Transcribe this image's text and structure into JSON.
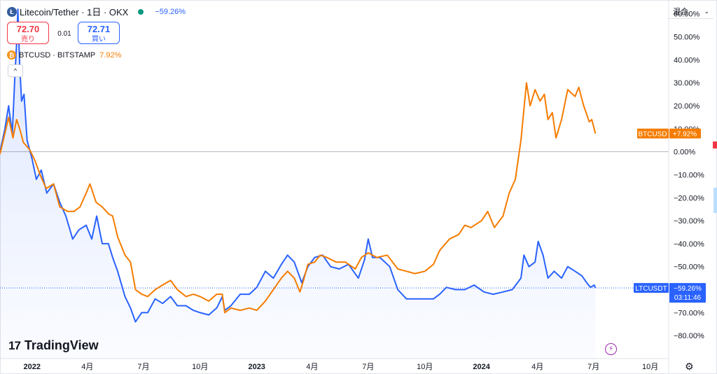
{
  "header": {
    "symbol_title": "Litecoin/Tether · 1日 · OKX",
    "change": "−59.26%",
    "sell_price": "72.70",
    "sell_label": "売り",
    "spread": "0.01",
    "buy_price": "72.71",
    "buy_label": "買い",
    "compare_symbol": "BTCUSD · BITSTAMP",
    "compare_change": "7.92%",
    "collapse_glyph": "^",
    "coin_glyph_main": "Ł",
    "coin_glyph_compare": "₿"
  },
  "toolbar": {
    "mode_label": "混合",
    "mode_chevron": "⌄"
  },
  "branding": {
    "mark": "17",
    "name": "TradingView"
  },
  "icons": {
    "flash": "⚡",
    "settings": "⚙"
  },
  "colors": {
    "ltc": "#2962ff",
    "btc": "#f57c00",
    "sell": "#f23645",
    "buy": "#2962ff",
    "zero_line": "#b2b5be",
    "last_line": "#2962ff"
  },
  "chart_data": {
    "type": "line",
    "title": "Litecoin/Tether · 1日 · OKX",
    "xlabel": "",
    "ylabel": "",
    "y_unit": "%",
    "ylim": [
      -90,
      66
    ],
    "y_ticks": [
      60,
      50,
      40,
      30,
      20,
      10,
      0,
      -10,
      -20,
      -30,
      -40,
      -50,
      -60,
      -70,
      -80
    ],
    "y_tick_labels": [
      "60.00%",
      "50.00%",
      "40.00%",
      "30.00%",
      "20.00%",
      "10.00%",
      "0.00%",
      "−10.00%",
      "−20.00%",
      "−30.00%",
      "−40.00%",
      "−50.00%",
      "−60.00%",
      "−70.00%",
      "−80.00%"
    ],
    "x_range": [
      "2021-11-10",
      "2024-10-31"
    ],
    "x_ticks": [
      "2022-01-01",
      "2022-04-01",
      "2022-07-01",
      "2022-10-01",
      "2023-01-01",
      "2023-04-01",
      "2023-07-01",
      "2023-10-01",
      "2024-01-01",
      "2024-04-01",
      "2024-07-01",
      "2024-10-01"
    ],
    "x_tick_labels": [
      "2022",
      "4月",
      "7月",
      "10月",
      "2023",
      "4月",
      "7月",
      "10月",
      "2024",
      "4月",
      "7月",
      "10月"
    ],
    "grid": false,
    "series": [
      {
        "name": "LTCUSDT",
        "color": "#2962ff",
        "filled": true,
        "last_label": "−59.26%",
        "countdown": "03:11:46",
        "points": [
          [
            "2021-11-10",
            0
          ],
          [
            "2021-11-18",
            10
          ],
          [
            "2021-11-24",
            20
          ],
          [
            "2021-11-30",
            8
          ],
          [
            "2021-12-04",
            32
          ],
          [
            "2021-12-07",
            47
          ],
          [
            "2021-12-09",
            62
          ],
          [
            "2021-12-12",
            38
          ],
          [
            "2021-12-15",
            22
          ],
          [
            "2021-12-19",
            25
          ],
          [
            "2021-12-24",
            5
          ],
          [
            "2022-01-01",
            -3
          ],
          [
            "2022-01-08",
            -12
          ],
          [
            "2022-01-16",
            -8
          ],
          [
            "2022-01-25",
            -18
          ],
          [
            "2022-02-05",
            -14
          ],
          [
            "2022-02-15",
            -22
          ],
          [
            "2022-02-25",
            -28
          ],
          [
            "2022-03-08",
            -38
          ],
          [
            "2022-03-18",
            -34
          ],
          [
            "2022-03-30",
            -32
          ],
          [
            "2022-04-08",
            -38
          ],
          [
            "2022-04-16",
            -28
          ],
          [
            "2022-04-25",
            -40
          ],
          [
            "2022-05-05",
            -40
          ],
          [
            "2022-05-12",
            -46
          ],
          [
            "2022-05-20",
            -52
          ],
          [
            "2022-06-01",
            -63
          ],
          [
            "2022-06-10",
            -68
          ],
          [
            "2022-06-18",
            -74
          ],
          [
            "2022-06-28",
            -70
          ],
          [
            "2022-07-08",
            -70
          ],
          [
            "2022-07-20",
            -64
          ],
          [
            "2022-08-01",
            -66
          ],
          [
            "2022-08-14",
            -63
          ],
          [
            "2022-08-25",
            -67
          ],
          [
            "2022-09-08",
            -67
          ],
          [
            "2022-09-20",
            -69
          ],
          [
            "2022-10-01",
            -70
          ],
          [
            "2022-10-15",
            -71
          ],
          [
            "2022-10-28",
            -68
          ],
          [
            "2022-11-06",
            -63
          ],
          [
            "2022-11-10",
            -69
          ],
          [
            "2022-11-20",
            -67
          ],
          [
            "2022-12-05",
            -62
          ],
          [
            "2022-12-20",
            -62
          ],
          [
            "2023-01-01",
            -59
          ],
          [
            "2023-01-15",
            -52
          ],
          [
            "2023-01-28",
            -55
          ],
          [
            "2023-02-10",
            -49
          ],
          [
            "2023-02-20",
            -45
          ],
          [
            "2023-03-03",
            -48
          ],
          [
            "2023-03-15",
            -57
          ],
          [
            "2023-03-25",
            -50
          ],
          [
            "2023-04-05",
            -46
          ],
          [
            "2023-04-18",
            -45
          ],
          [
            "2023-05-01",
            -50
          ],
          [
            "2023-05-15",
            -51
          ],
          [
            "2023-05-30",
            -49
          ],
          [
            "2023-06-15",
            -55
          ],
          [
            "2023-06-25",
            -47
          ],
          [
            "2023-07-01",
            -38
          ],
          [
            "2023-07-08",
            -46
          ],
          [
            "2023-07-20",
            -46
          ],
          [
            "2023-08-05",
            -50
          ],
          [
            "2023-08-18",
            -60
          ],
          [
            "2023-09-01",
            -64
          ],
          [
            "2023-09-15",
            -64
          ],
          [
            "2023-10-01",
            -64
          ],
          [
            "2023-10-15",
            -64
          ],
          [
            "2023-10-25",
            -62
          ],
          [
            "2023-11-05",
            -59
          ],
          [
            "2023-11-20",
            -60
          ],
          [
            "2023-12-05",
            -60
          ],
          [
            "2023-12-20",
            -58
          ],
          [
            "2024-01-05",
            -61
          ],
          [
            "2024-01-20",
            -62
          ],
          [
            "2024-02-05",
            -61
          ],
          [
            "2024-02-20",
            -60
          ],
          [
            "2024-03-05",
            -55
          ],
          [
            "2024-03-10",
            -45
          ],
          [
            "2024-03-18",
            -50
          ],
          [
            "2024-03-28",
            -48
          ],
          [
            "2024-04-02",
            -39
          ],
          [
            "2024-04-10",
            -45
          ],
          [
            "2024-04-18",
            -55
          ],
          [
            "2024-04-28",
            -52
          ],
          [
            "2024-05-10",
            -55
          ],
          [
            "2024-05-20",
            -50
          ],
          [
            "2024-06-01",
            -52
          ],
          [
            "2024-06-12",
            -54
          ],
          [
            "2024-06-20",
            -57
          ],
          [
            "2024-06-26",
            -59
          ],
          [
            "2024-07-02",
            -58
          ],
          [
            "2024-07-04",
            -59.26
          ]
        ]
      },
      {
        "name": "BTCUSD",
        "color": "#f57c00",
        "filled": false,
        "last_label": "+7.92%",
        "points": [
          [
            "2021-11-10",
            -1
          ],
          [
            "2021-11-18",
            8
          ],
          [
            "2021-11-24",
            15
          ],
          [
            "2021-12-01",
            6
          ],
          [
            "2021-12-07",
            14
          ],
          [
            "2021-12-12",
            10
          ],
          [
            "2021-12-18",
            4
          ],
          [
            "2021-12-28",
            1
          ],
          [
            "2022-01-06",
            -4
          ],
          [
            "2022-01-14",
            -10
          ],
          [
            "2022-01-24",
            -16
          ],
          [
            "2022-02-05",
            -14
          ],
          [
            "2022-02-15",
            -24
          ],
          [
            "2022-02-28",
            -26
          ],
          [
            "2022-03-10",
            -26
          ],
          [
            "2022-03-20",
            -24
          ],
          [
            "2022-03-30",
            -18
          ],
          [
            "2022-04-05",
            -14
          ],
          [
            "2022-04-15",
            -22
          ],
          [
            "2022-04-25",
            -24
          ],
          [
            "2022-05-05",
            -27
          ],
          [
            "2022-05-12",
            -28
          ],
          [
            "2022-05-20",
            -37
          ],
          [
            "2022-06-01",
            -45
          ],
          [
            "2022-06-10",
            -48
          ],
          [
            "2022-06-18",
            -60
          ],
          [
            "2022-06-28",
            -62
          ],
          [
            "2022-07-08",
            -63
          ],
          [
            "2022-07-20",
            -60
          ],
          [
            "2022-08-01",
            -58
          ],
          [
            "2022-08-14",
            -56
          ],
          [
            "2022-08-25",
            -60
          ],
          [
            "2022-09-08",
            -63
          ],
          [
            "2022-09-20",
            -62
          ],
          [
            "2022-10-01",
            -63
          ],
          [
            "2022-10-15",
            -65
          ],
          [
            "2022-10-28",
            -62
          ],
          [
            "2022-11-06",
            -62
          ],
          [
            "2022-11-10",
            -70
          ],
          [
            "2022-11-20",
            -68
          ],
          [
            "2022-12-05",
            -69
          ],
          [
            "2022-12-20",
            -68
          ],
          [
            "2023-01-01",
            -69
          ],
          [
            "2023-01-15",
            -65
          ],
          [
            "2023-01-28",
            -60
          ],
          [
            "2023-02-10",
            -55
          ],
          [
            "2023-02-20",
            -52
          ],
          [
            "2023-03-03",
            -55
          ],
          [
            "2023-03-12",
            -61
          ],
          [
            "2023-03-18",
            -56
          ],
          [
            "2023-03-25",
            -49
          ],
          [
            "2023-04-05",
            -48
          ],
          [
            "2023-04-14",
            -45
          ],
          [
            "2023-04-25",
            -46
          ],
          [
            "2023-05-10",
            -48
          ],
          [
            "2023-05-25",
            -48
          ],
          [
            "2023-06-10",
            -51
          ],
          [
            "2023-06-20",
            -46
          ],
          [
            "2023-07-01",
            -44
          ],
          [
            "2023-07-15",
            -46
          ],
          [
            "2023-08-01",
            -45
          ],
          [
            "2023-08-18",
            -51
          ],
          [
            "2023-09-01",
            -52
          ],
          [
            "2023-09-15",
            -53
          ],
          [
            "2023-10-01",
            -52
          ],
          [
            "2023-10-15",
            -49
          ],
          [
            "2023-10-25",
            -43
          ],
          [
            "2023-11-10",
            -38
          ],
          [
            "2023-11-25",
            -36
          ],
          [
            "2023-12-05",
            -32
          ],
          [
            "2023-12-15",
            -33
          ],
          [
            "2024-01-01",
            -30
          ],
          [
            "2024-01-11",
            -26
          ],
          [
            "2024-01-22",
            -33
          ],
          [
            "2024-02-05",
            -28
          ],
          [
            "2024-02-15",
            -18
          ],
          [
            "2024-02-25",
            -12
          ],
          [
            "2024-03-05",
            5
          ],
          [
            "2024-03-14",
            30
          ],
          [
            "2024-03-20",
            20
          ],
          [
            "2024-03-28",
            27
          ],
          [
            "2024-04-05",
            22
          ],
          [
            "2024-04-12",
            25
          ],
          [
            "2024-04-18",
            14
          ],
          [
            "2024-04-25",
            17
          ],
          [
            "2024-05-01",
            6
          ],
          [
            "2024-05-10",
            14
          ],
          [
            "2024-05-20",
            27
          ],
          [
            "2024-06-01",
            24
          ],
          [
            "2024-06-07",
            28
          ],
          [
            "2024-06-15",
            20
          ],
          [
            "2024-06-24",
            13
          ],
          [
            "2024-06-28",
            14
          ],
          [
            "2024-07-04",
            7.92
          ]
        ]
      }
    ]
  }
}
